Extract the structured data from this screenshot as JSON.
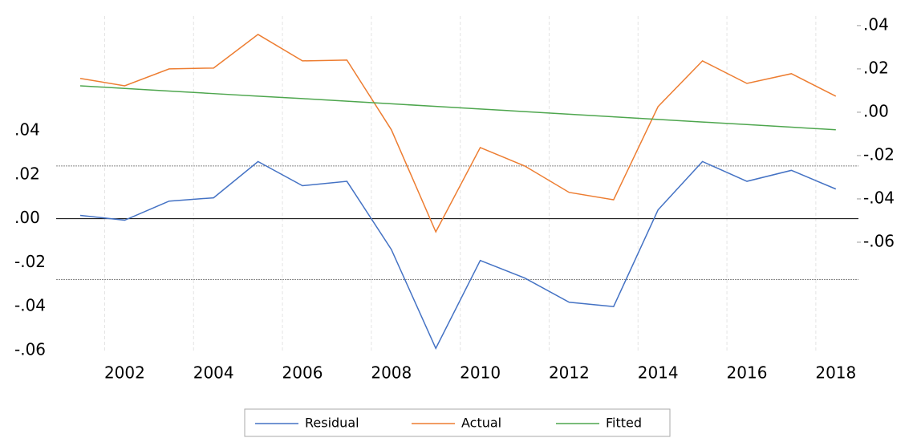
{
  "chart_data": {
    "type": "line",
    "categories": [
      null,
      "2002",
      null,
      "2004",
      null,
      "2006",
      null,
      "2008",
      null,
      "2010",
      null,
      "2012",
      null,
      "2014",
      null,
      "2016",
      null,
      "2018"
    ],
    "series": [
      {
        "name": "Residual",
        "color": "#4472c4",
        "values": [
          0.0015,
          -0.0007,
          0.008,
          0.0095,
          0.026,
          0.015,
          0.017,
          -0.014,
          -0.059,
          -0.019,
          -0.027,
          -0.038,
          -0.04,
          0.004,
          0.026,
          0.017,
          0.022,
          0.0135
        ]
      },
      {
        "name": "Actual",
        "color": "#ed7d31",
        "axis": "y2",
        "values": [
          0.0156,
          0.0122,
          0.02,
          0.0204,
          0.0359,
          0.0237,
          0.0241,
          -0.0081,
          -0.0552,
          -0.0163,
          -0.0248,
          -0.037,
          -0.0404,
          0.0026,
          0.0237,
          0.0133,
          0.0178,
          0.0074
        ]
      },
      {
        "name": "Fitted",
        "color": "#4ea64e",
        "axis": "y2",
        "values": [
          0.0122,
          0.011,
          0.0098,
          0.0086,
          0.0074,
          0.0063,
          0.0051,
          0.0039,
          0.0027,
          0.0015,
          0.0003,
          -0.0009,
          -0.0021,
          -0.0033,
          -0.0045,
          -0.0057,
          -0.0069,
          -0.0081
        ]
      }
    ],
    "ylim": [
      -0.06,
      0.0922
    ],
    "yticks": [
      {
        "value": -0.06,
        "label": "-.06"
      },
      {
        "value": -0.04,
        "label": "-.04"
      },
      {
        "value": -0.02,
        "label": "-.02"
      },
      {
        "value": 0,
        "label": ".00"
      },
      {
        "value": 0.02,
        "label": ".02"
      },
      {
        "value": 0.04,
        "label": ".04"
      }
    ],
    "y2lim": [
      -0.11,
      0.0444
    ],
    "y2ticks": [
      {
        "value": -0.06,
        "label": "-.06"
      },
      {
        "value": -0.04,
        "label": "-.04"
      },
      {
        "value": -0.02,
        "label": "-.02"
      },
      {
        "value": 0,
        "label": ".00"
      },
      {
        "value": 0.02,
        "label": ".02"
      },
      {
        "value": 0.04,
        "label": ".04"
      }
    ],
    "reference_lines": [
      0.024,
      -0.0277
    ],
    "grid": true,
    "legend": "bottom"
  }
}
